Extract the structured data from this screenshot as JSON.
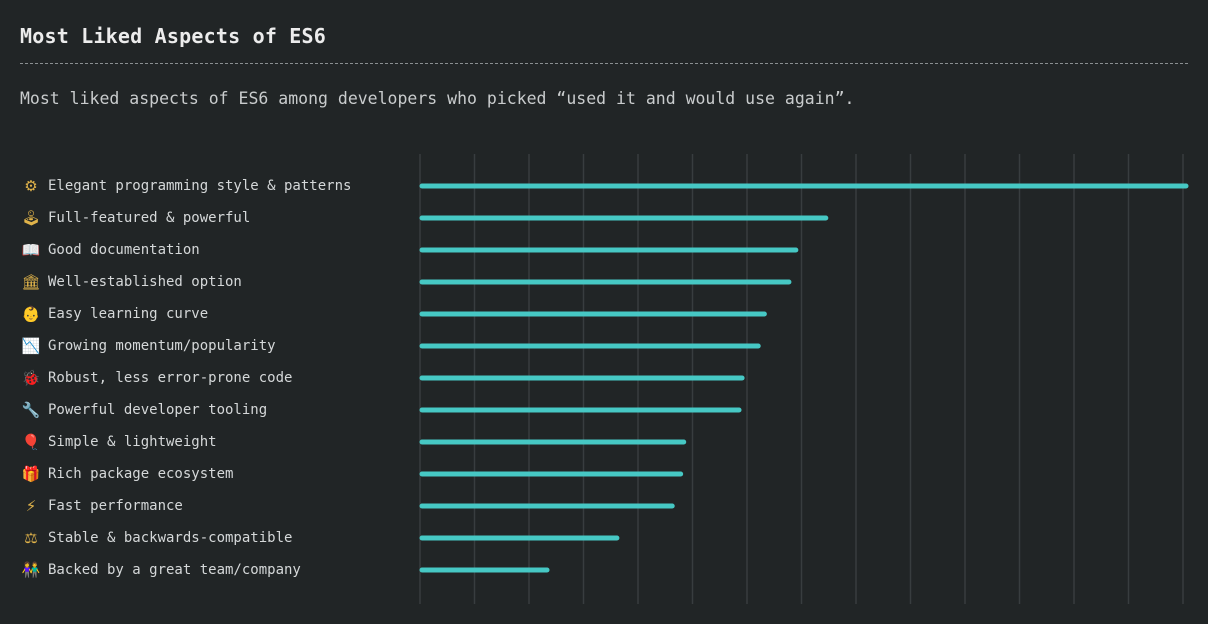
{
  "header": {
    "title": "Most Liked Aspects of ES6",
    "subtitle": "Most liked aspects of ES6 among developers who picked “used it and would use again”."
  },
  "colors": {
    "background": "#212526",
    "bar": "#46c8c4",
    "grid": "#383d3f"
  },
  "chart_data": {
    "type": "bar",
    "orientation": "horizontal",
    "categories": [
      "Elegant programming style & patterns",
      "Full-featured & powerful",
      "Good documentation",
      "Well-established option",
      "Easy learning curve",
      "Growing momentum/popularity",
      "Robust, less error-prone code",
      "Powerful developer tooling",
      "Simple & lightweight",
      "Rich package ecosystem",
      "Fast performance",
      "Stable & backwards-compatible",
      "Backed by a great team/company"
    ],
    "icons": [
      "⚙",
      "🕹",
      "📖",
      "🏛",
      "👶",
      "📉",
      "🐞",
      "🔧",
      "🎈",
      "🎁",
      "⚡",
      "⚖",
      "👫"
    ],
    "icon_names": [
      "gear-icon",
      "joystick-icon",
      "book-icon",
      "classical-building-icon",
      "baby-icon",
      "chart-icon",
      "bug-icon",
      "wrench-icon",
      "balloon-icon",
      "gift-icon",
      "lightning-icon",
      "scales-icon",
      "people-icon"
    ],
    "values": [
      100,
      53.1,
      49.2,
      48.3,
      45.1,
      44.3,
      42.2,
      41.8,
      34.6,
      34.2,
      33.1,
      25.9,
      16.8
    ],
    "xlim": [
      0,
      100
    ],
    "grid": true,
    "legend": "none"
  }
}
